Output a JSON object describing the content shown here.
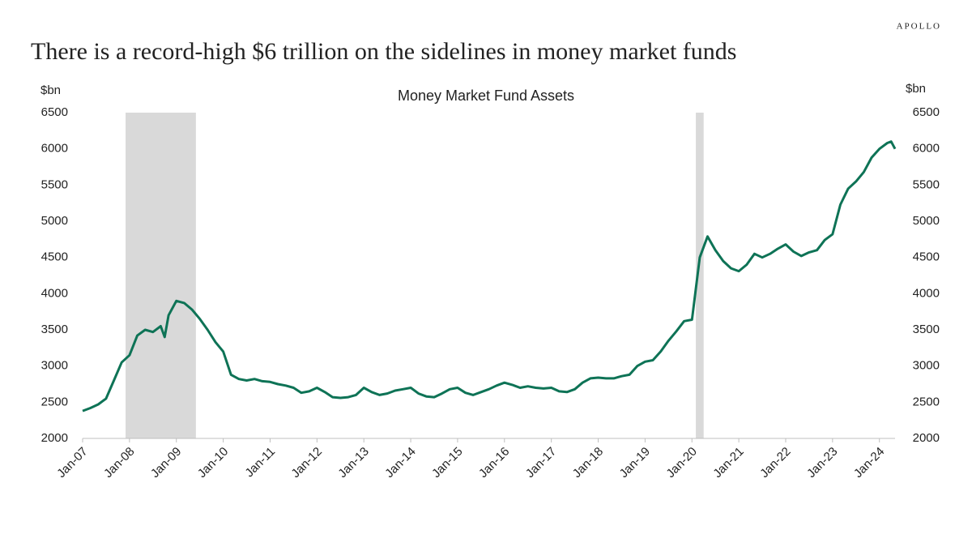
{
  "brand": "APOLLO",
  "headline": "There is a record-high $6 trillion on the sidelines in money market funds",
  "chart_data": {
    "type": "line",
    "title": "Money Market Fund Assets",
    "y_axis_label": "$bn",
    "y2_axis_label": "$bn",
    "x": [
      "2007-01",
      "2007-03",
      "2007-05",
      "2007-07",
      "2007-09",
      "2007-11",
      "2008-01",
      "2008-03",
      "2008-05",
      "2008-07",
      "2008-09",
      "2008-10",
      "2008-11",
      "2009-01",
      "2009-03",
      "2009-05",
      "2009-07",
      "2009-09",
      "2009-11",
      "2010-01",
      "2010-03",
      "2010-05",
      "2010-07",
      "2010-09",
      "2010-11",
      "2011-01",
      "2011-03",
      "2011-05",
      "2011-07",
      "2011-09",
      "2011-11",
      "2012-01",
      "2012-03",
      "2012-05",
      "2012-07",
      "2012-09",
      "2012-11",
      "2013-01",
      "2013-03",
      "2013-05",
      "2013-07",
      "2013-09",
      "2013-11",
      "2014-01",
      "2014-03",
      "2014-05",
      "2014-07",
      "2014-09",
      "2014-11",
      "2015-01",
      "2015-03",
      "2015-05",
      "2015-07",
      "2015-09",
      "2015-11",
      "2016-01",
      "2016-03",
      "2016-05",
      "2016-07",
      "2016-09",
      "2016-11",
      "2017-01",
      "2017-03",
      "2017-05",
      "2017-07",
      "2017-09",
      "2017-11",
      "2018-01",
      "2018-03",
      "2018-05",
      "2018-07",
      "2018-09",
      "2018-11",
      "2019-01",
      "2019-03",
      "2019-05",
      "2019-07",
      "2019-09",
      "2019-11",
      "2020-01",
      "2020-03",
      "2020-05",
      "2020-07",
      "2020-09",
      "2020-11",
      "2021-01",
      "2021-03",
      "2021-05",
      "2021-07",
      "2021-09",
      "2021-11",
      "2022-01",
      "2022-03",
      "2022-05",
      "2022-07",
      "2022-09",
      "2022-11",
      "2023-01",
      "2023-03",
      "2023-05",
      "2023-07",
      "2023-09",
      "2023-11",
      "2024-01",
      "2024-03",
      "2024-04",
      "2024-05"
    ],
    "series": [
      {
        "name": "Money Market Fund Assets",
        "color": "#0e7356",
        "values": [
          2380,
          2420,
          2470,
          2550,
          2800,
          3050,
          3150,
          3420,
          3500,
          3470,
          3550,
          3400,
          3700,
          3900,
          3870,
          3780,
          3650,
          3500,
          3330,
          3200,
          2880,
          2820,
          2800,
          2820,
          2790,
          2780,
          2750,
          2730,
          2700,
          2630,
          2650,
          2700,
          2640,
          2570,
          2560,
          2570,
          2600,
          2700,
          2640,
          2600,
          2620,
          2660,
          2680,
          2700,
          2620,
          2580,
          2570,
          2620,
          2680,
          2700,
          2630,
          2600,
          2640,
          2680,
          2730,
          2770,
          2740,
          2700,
          2720,
          2700,
          2690,
          2700,
          2650,
          2640,
          2680,
          2770,
          2830,
          2840,
          2830,
          2830,
          2860,
          2880,
          3000,
          3060,
          3080,
          3200,
          3350,
          3480,
          3620,
          3640,
          4500,
          4790,
          4600,
          4450,
          4350,
          4310,
          4400,
          4550,
          4500,
          4550,
          4620,
          4680,
          4580,
          4520,
          4570,
          4600,
          4740,
          4820,
          5230,
          5450,
          5550,
          5680,
          5880,
          6000,
          6080,
          6100,
          6000
        ]
      }
    ],
    "recessions": [
      [
        "2007-12",
        "2009-06"
      ],
      [
        "2020-02",
        "2020-04"
      ]
    ],
    "recession_color": "#d9d9d9",
    "xlim": [
      "2007-01",
      "2024-05"
    ],
    "xticks": [
      {
        "value": "2007-01",
        "label": "Jan-07"
      },
      {
        "value": "2008-01",
        "label": "Jan-08"
      },
      {
        "value": "2009-01",
        "label": "Jan-09"
      },
      {
        "value": "2010-01",
        "label": "Jan-10"
      },
      {
        "value": "2011-01",
        "label": "Jan-11"
      },
      {
        "value": "2012-01",
        "label": "Jan-12"
      },
      {
        "value": "2013-01",
        "label": "Jan-13"
      },
      {
        "value": "2014-01",
        "label": "Jan-14"
      },
      {
        "value": "2015-01",
        "label": "Jan-15"
      },
      {
        "value": "2016-01",
        "label": "Jan-16"
      },
      {
        "value": "2017-01",
        "label": "Jan-17"
      },
      {
        "value": "2018-01",
        "label": "Jan-18"
      },
      {
        "value": "2019-01",
        "label": "Jan-19"
      },
      {
        "value": "2020-01",
        "label": "Jan-20"
      },
      {
        "value": "2021-01",
        "label": "Jan-21"
      },
      {
        "value": "2022-01",
        "label": "Jan-22"
      },
      {
        "value": "2023-01",
        "label": "Jan-23"
      },
      {
        "value": "2024-01",
        "label": "Jan-24"
      }
    ],
    "ylim": [
      2000,
      6500
    ],
    "yticks": [
      2000,
      2500,
      3000,
      3500,
      4000,
      4500,
      5000,
      5500,
      6000,
      6500
    ],
    "y2lim": [
      2000,
      6500
    ],
    "y2ticks": [
      2000,
      2500,
      3000,
      3500,
      4000,
      4500,
      5000,
      5500,
      6000,
      6500
    ],
    "grid": false
  }
}
